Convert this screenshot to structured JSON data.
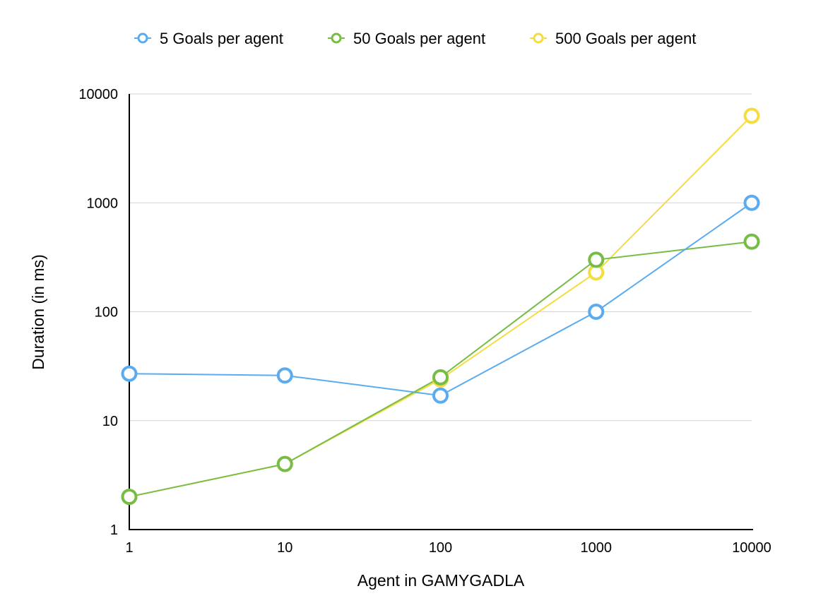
{
  "chart_data": {
    "type": "line",
    "title": "",
    "xlabel": "Agent in GAMYGADLA",
    "ylabel": "Duration (in ms)",
    "x_scale": "log",
    "y_scale": "log",
    "x": [
      1,
      10,
      100,
      1000,
      10000
    ],
    "x_tick_labels": [
      "1",
      "10",
      "100",
      "1000",
      "10000"
    ],
    "y_tick_values": [
      1,
      10,
      100,
      1000,
      10000
    ],
    "y_tick_labels": [
      "1",
      "10",
      "100",
      "1000",
      "10000"
    ],
    "xlim": [
      1,
      10000
    ],
    "ylim": [
      1,
      10000
    ],
    "grid": "horizontal",
    "legend_position": "top",
    "series": [
      {
        "name": "5 Goals per agent",
        "color": "#5aabf0",
        "values": [
          27,
          26,
          17,
          100,
          1000
        ]
      },
      {
        "name": "50 Goals per agent",
        "color": "#77bd45",
        "values": [
          2,
          4,
          25,
          300,
          440
        ]
      },
      {
        "name": "500 Goals per agent",
        "color": "#f5dc40",
        "values": [
          2,
          4,
          24,
          230,
          6300
        ]
      }
    ]
  }
}
